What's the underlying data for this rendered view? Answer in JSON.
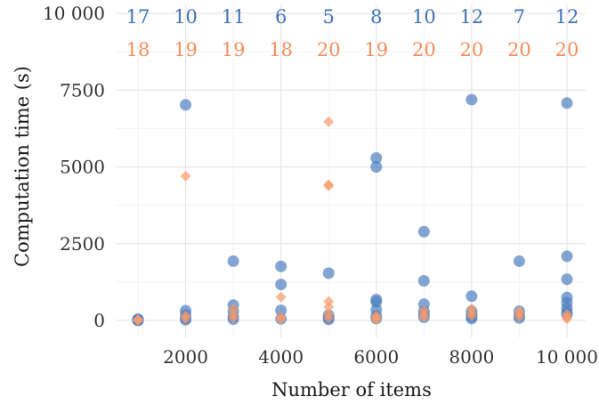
{
  "chart_data": {
    "type": "scatter",
    "xlabel": "Number of items",
    "ylabel": "Computation time (s)",
    "xlim": [
      1000,
      10000
    ],
    "ylim": [
      0,
      10000
    ],
    "x_ticks": [
      2000,
      4000,
      6000,
      8000,
      10000
    ],
    "x_tick_labels": [
      "2000",
      "4000",
      "6000",
      "8000",
      "10 000"
    ],
    "y_ticks": [
      0,
      2500,
      5000,
      7500,
      10000
    ],
    "y_tick_labels": [
      "0",
      "2500",
      "5000",
      "7500",
      "10 000"
    ],
    "grid": true,
    "colors": {
      "blue": "#4f7fc0",
      "orange": "#f79b6b"
    },
    "count_rows": [
      {
        "color": "#3f72b7",
        "x": [
          1000,
          2000,
          3000,
          4000,
          5000,
          6000,
          7000,
          8000,
          9000,
          10000
        ],
        "labels": [
          "17",
          "10",
          "11",
          "6",
          "5",
          "8",
          "10",
          "12",
          "7",
          "12"
        ]
      },
      {
        "color": "#f58e5c",
        "x": [
          1000,
          2000,
          3000,
          4000,
          5000,
          6000,
          7000,
          8000,
          9000,
          10000
        ],
        "labels": [
          "18",
          "19",
          "19",
          "18",
          "20",
          "19",
          "20",
          "20",
          "20",
          "20"
        ]
      }
    ],
    "series": [
      {
        "marker": "circle",
        "color": "#4f7fc0",
        "points": [
          [
            1000,
            0
          ],
          [
            1000,
            10
          ],
          [
            1000,
            25
          ],
          [
            1000,
            40
          ],
          [
            2000,
            7020
          ],
          [
            2000,
            320
          ],
          [
            2000,
            180
          ],
          [
            2000,
            60
          ],
          [
            2000,
            20
          ],
          [
            3000,
            1930
          ],
          [
            3000,
            500
          ],
          [
            3000,
            300
          ],
          [
            3000,
            120
          ],
          [
            3000,
            40
          ],
          [
            4000,
            1760
          ],
          [
            4000,
            1170
          ],
          [
            4000,
            330
          ],
          [
            4000,
            50
          ],
          [
            5000,
            1540
          ],
          [
            5000,
            170
          ],
          [
            5000,
            80
          ],
          [
            5000,
            30
          ],
          [
            6000,
            5290
          ],
          [
            6000,
            5000
          ],
          [
            6000,
            680
          ],
          [
            6000,
            600
          ],
          [
            6000,
            350
          ],
          [
            6000,
            150
          ],
          [
            6000,
            60
          ],
          [
            7000,
            2890
          ],
          [
            7000,
            1290
          ],
          [
            7000,
            530
          ],
          [
            7000,
            300
          ],
          [
            7000,
            200
          ],
          [
            7000,
            100
          ],
          [
            8000,
            7190
          ],
          [
            8000,
            790
          ],
          [
            8000,
            300
          ],
          [
            8000,
            200
          ],
          [
            8000,
            120
          ],
          [
            8000,
            60
          ],
          [
            9000,
            1930
          ],
          [
            9000,
            300
          ],
          [
            9000,
            150
          ],
          [
            9000,
            80
          ],
          [
            10000,
            7080
          ],
          [
            10000,
            2090
          ],
          [
            10000,
            1340
          ],
          [
            10000,
            750
          ],
          [
            10000,
            580
          ],
          [
            10000,
            400
          ],
          [
            10000,
            260
          ],
          [
            10000,
            200
          ]
        ]
      },
      {
        "marker": "diamond",
        "color": "#f79b6b",
        "points": [
          [
            1000,
            0
          ],
          [
            1000,
            15
          ],
          [
            1000,
            30
          ],
          [
            2000,
            4700
          ],
          [
            2000,
            150
          ],
          [
            2000,
            60
          ],
          [
            3000,
            380
          ],
          [
            3000,
            200
          ],
          [
            3000,
            80
          ],
          [
            4000,
            760
          ],
          [
            4000,
            120
          ],
          [
            4000,
            40
          ],
          [
            5000,
            6470
          ],
          [
            5000,
            4420
          ],
          [
            5000,
            4380
          ],
          [
            5000,
            620
          ],
          [
            5000,
            440
          ],
          [
            5000,
            200
          ],
          [
            5000,
            80
          ],
          [
            6000,
            150
          ],
          [
            6000,
            80
          ],
          [
            6000,
            30
          ],
          [
            7000,
            330
          ],
          [
            7000,
            200
          ],
          [
            7000,
            100
          ],
          [
            8000,
            380
          ],
          [
            8000,
            250
          ],
          [
            8000,
            150
          ],
          [
            9000,
            300
          ],
          [
            9000,
            220
          ],
          [
            9000,
            120
          ],
          [
            10000,
            200
          ],
          [
            10000,
            100
          ],
          [
            10000,
            50
          ]
        ]
      }
    ]
  }
}
